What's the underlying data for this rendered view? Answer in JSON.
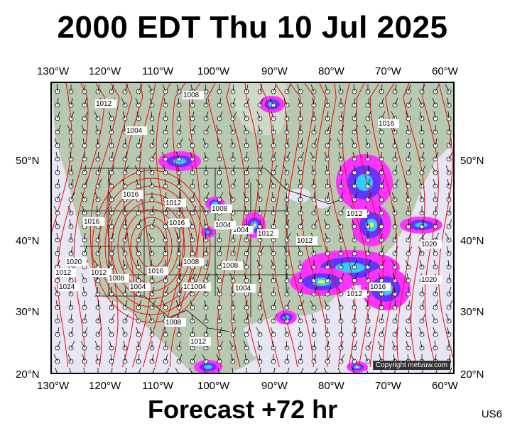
{
  "header": {
    "title": "2000 EDT Thu 10 Jul 2025"
  },
  "footer": {
    "forecast_label": "Forecast +72 hr",
    "region_code": "US6"
  },
  "map": {
    "copyright": "Copyright metvuw.com",
    "longitude_labels": [
      "130°W",
      "120°W",
      "110°W",
      "100°W",
      "90°W",
      "80°W",
      "70°W",
      "60°W"
    ],
    "latitude_labels": [
      "50°N",
      "40°N",
      "30°N",
      "20°N"
    ],
    "pressure_labels": [
      "1012",
      "1008",
      "1004",
      "1016",
      "1016",
      "1012",
      "1016",
      "1008",
      "1004",
      "1004",
      "1012",
      "1012",
      "1008",
      "1008",
      "1016",
      "1020",
      "1012",
      "1012",
      "1008",
      "1004",
      "1008",
      "1004",
      "1008",
      "1004",
      "1012",
      "1012",
      "1012",
      "1016",
      "1020",
      "1020",
      "1024",
      "1016"
    ],
    "colors": {
      "ocean": "#e6e6f5",
      "land": "#b7c9b0",
      "isobar": "#ff0000",
      "rain_light": "#ff33ff",
      "rain_medium": "#6633ff",
      "rain_heavy": "#33ccff",
      "rain_extreme": "#ffff33"
    }
  }
}
